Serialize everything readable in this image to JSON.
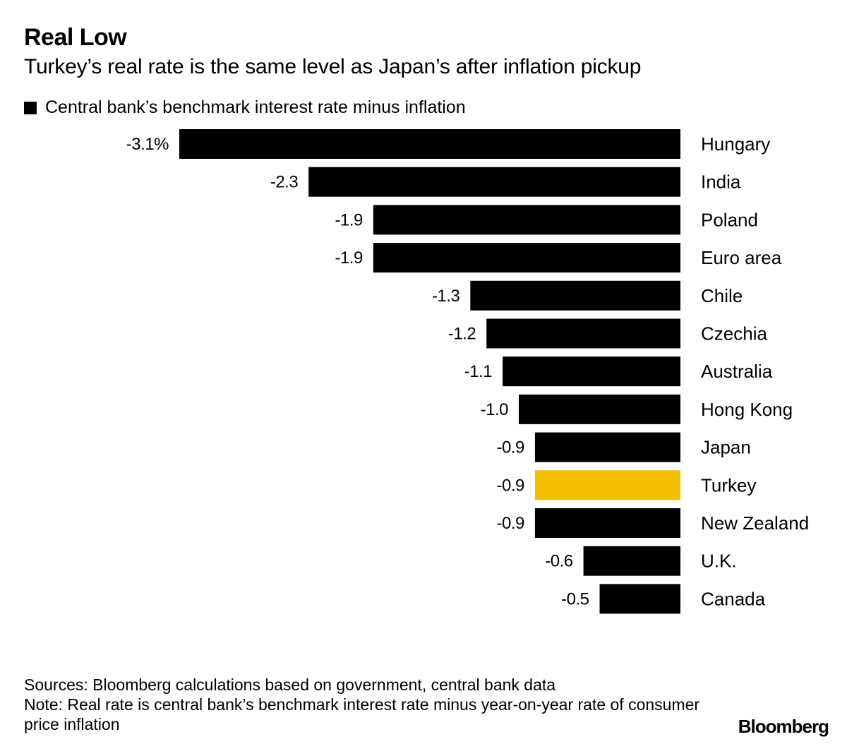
{
  "chart_data": {
    "type": "bar",
    "orientation": "horizontal",
    "title": "Real Low",
    "subtitle": "Turkey’s real rate is the same level as Japan’s after inflation pickup",
    "legend": "Central bank’s benchmark interest rate minus inflation",
    "categories": [
      "Hungary",
      "India",
      "Poland",
      "Euro area",
      "Chile",
      "Czechia",
      "Australia",
      "Hong Kong",
      "Japan",
      "Turkey",
      "New Zealand",
      "U.K.",
      "Canada"
    ],
    "values": [
      -3.1,
      -2.3,
      -1.9,
      -1.9,
      -1.3,
      -1.2,
      -1.1,
      -1.0,
      -0.9,
      -0.9,
      -0.9,
      -0.6,
      -0.5
    ],
    "value_labels": [
      "-3.1%",
      "-2.3",
      "-1.9",
      "-1.9",
      "-1.3",
      "-1.2",
      "-1.1",
      "-1.0",
      "-0.9",
      "-0.9",
      "-0.9",
      "-0.6",
      "-0.5"
    ],
    "highlight": "Turkey",
    "xlim": [
      -3.1,
      0
    ]
  },
  "colors": {
    "bar": "#000000",
    "highlight": "#f5c000",
    "text": "#000000",
    "background": "#ffffff"
  },
  "footer": {
    "sources": "Sources: Bloomberg calculations based on government, central bank data",
    "note": "Note: Real rate is central bank’s benchmark interest rate minus year-on-year rate of consumer price inflation"
  },
  "brand": "Bloomberg"
}
